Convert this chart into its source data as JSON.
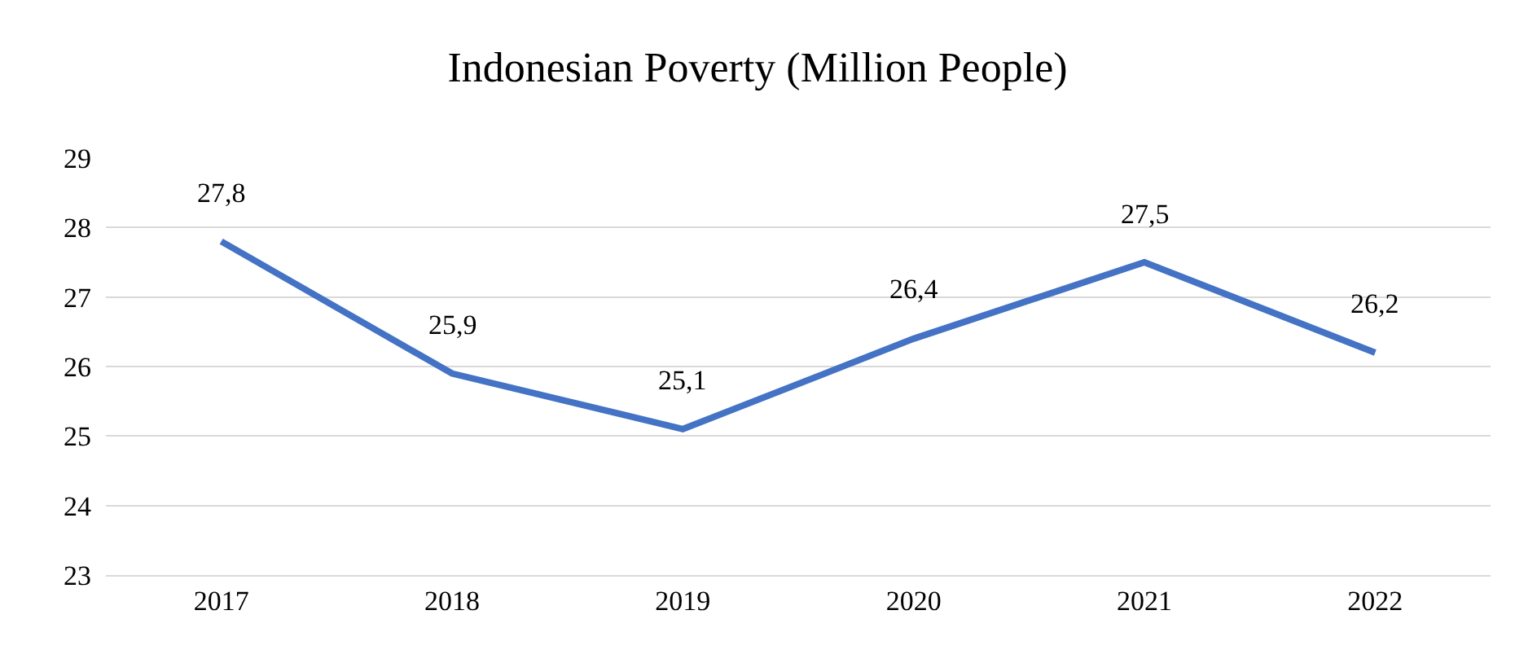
{
  "chart_data": {
    "type": "line",
    "title": "Indonesian Poverty (Million People)",
    "categories": [
      "2017",
      "2018",
      "2019",
      "2020",
      "2021",
      "2022"
    ],
    "series": [
      {
        "color": "#4472c4",
        "values": [
          27.8,
          25.9,
          25.1,
          26.4,
          27.5,
          26.2
        ],
        "value_labels": [
          "27,8",
          "25,9",
          "25,1",
          "26,4",
          "27,5",
          "26,2"
        ]
      }
    ],
    "ylim": [
      23,
      29
    ],
    "yticks": [
      23,
      24,
      25,
      26,
      27,
      28,
      29
    ],
    "grid": "y",
    "marker": "none",
    "line_style": "solid"
  }
}
